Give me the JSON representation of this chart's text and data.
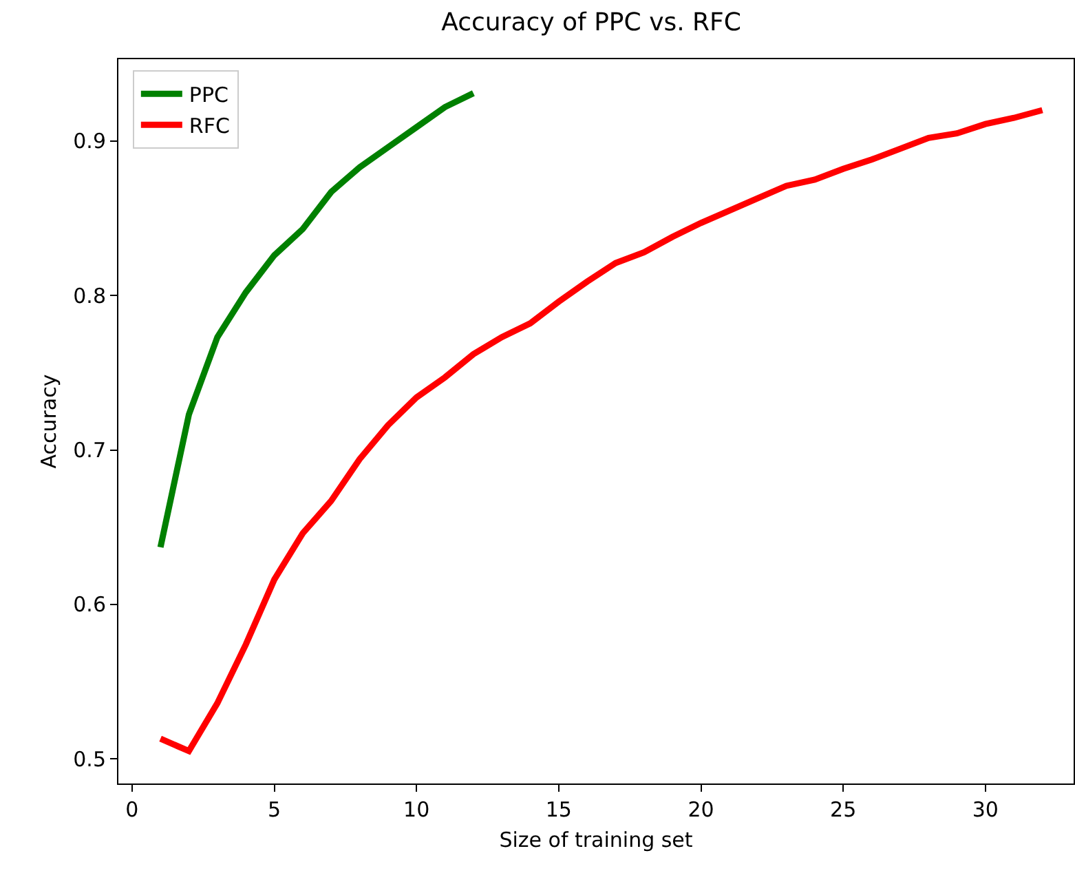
{
  "chart_data": {
    "type": "line",
    "title": "Accuracy of PPC vs. RFC",
    "xlabel": "Size of training set",
    "ylabel": "Accuracy",
    "xlim": [
      -0.48,
      33.1
    ],
    "xticks": [
      0,
      5,
      10,
      15,
      20,
      25,
      30
    ],
    "ylim": [
      0.484,
      0.953
    ],
    "yticks": [
      0.5,
      0.6,
      0.7,
      0.8,
      0.9
    ],
    "legend": "top left",
    "grid": false,
    "series": [
      {
        "name": "PPC",
        "color": "#008000",
        "x": [
          1,
          2,
          3,
          4,
          5,
          6,
          7,
          8,
          9,
          10,
          11,
          12
        ],
        "values": [
          0.637,
          0.723,
          0.773,
          0.802,
          0.826,
          0.843,
          0.867,
          0.883,
          0.896,
          0.909,
          0.922,
          0.931
        ]
      },
      {
        "name": "RFC",
        "color": "#ff0000",
        "x": [
          1,
          2,
          3,
          4,
          5,
          6,
          7,
          8,
          9,
          10,
          11,
          12,
          13,
          14,
          15,
          16,
          17,
          18,
          19,
          20,
          21,
          22,
          23,
          24,
          25,
          26,
          27,
          28,
          29,
          30,
          31,
          32
        ],
        "values": [
          0.513,
          0.505,
          0.536,
          0.574,
          0.616,
          0.646,
          0.667,
          0.694,
          0.716,
          0.734,
          0.747,
          0.762,
          0.773,
          0.782,
          0.796,
          0.809,
          0.821,
          0.828,
          0.838,
          0.847,
          0.855,
          0.863,
          0.871,
          0.875,
          0.882,
          0.888,
          0.895,
          0.902,
          0.905,
          0.911,
          0.915,
          0.92
        ]
      }
    ]
  }
}
